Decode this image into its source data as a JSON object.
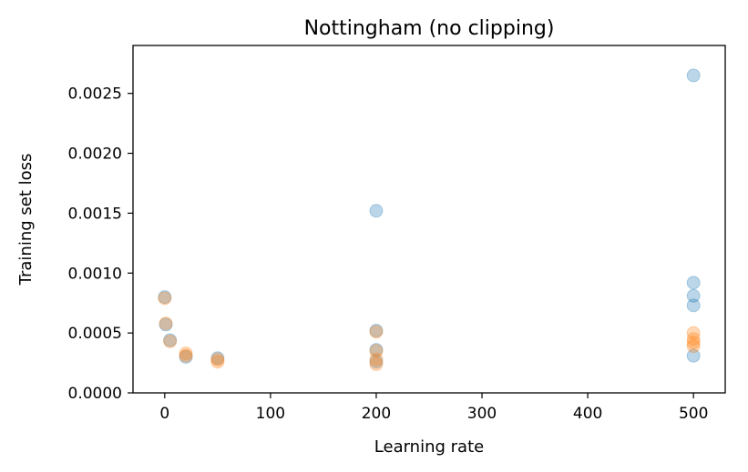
{
  "chart_data": {
    "type": "scatter",
    "title": "Nottingham (no clipping)",
    "xlabel": "Learning rate",
    "ylabel": "Training set loss",
    "xlim": [
      -30,
      530
    ],
    "ylim": [
      0.0,
      0.0029
    ],
    "xticks": [
      0,
      100,
      200,
      300,
      400,
      500
    ],
    "yticks": [
      0.0,
      0.0005,
      0.001,
      0.0015,
      0.002,
      0.0025
    ],
    "xtick_labels": [
      "0",
      "100",
      "200",
      "300",
      "400",
      "500"
    ],
    "ytick_labels": [
      "0.0000",
      "0.0005",
      "0.0010",
      "0.0015",
      "0.0020",
      "0.0025"
    ],
    "grid": false,
    "legend": "none",
    "series": [
      {
        "color": "#1f77b4",
        "points": [
          {
            "x": 0,
            "y": 0.0008
          },
          {
            "x": 1,
            "y": 0.00057
          },
          {
            "x": 5,
            "y": 0.00044
          },
          {
            "x": 20,
            "y": 0.0003
          },
          {
            "x": 50,
            "y": 0.00029
          },
          {
            "x": 200,
            "y": 0.00152
          },
          {
            "x": 200,
            "y": 0.00052
          },
          {
            "x": 200,
            "y": 0.00036
          },
          {
            "x": 200,
            "y": 0.00026
          },
          {
            "x": 500,
            "y": 0.00265
          },
          {
            "x": 500,
            "y": 0.00092
          },
          {
            "x": 500,
            "y": 0.00081
          },
          {
            "x": 500,
            "y": 0.00073
          },
          {
            "x": 500,
            "y": 0.00031
          }
        ]
      },
      {
        "color": "#ff7f0e",
        "points": [
          {
            "x": 0,
            "y": 0.00079
          },
          {
            "x": 1,
            "y": 0.00058
          },
          {
            "x": 5,
            "y": 0.00043
          },
          {
            "x": 20,
            "y": 0.00033
          },
          {
            "x": 20,
            "y": 0.00031
          },
          {
            "x": 50,
            "y": 0.00028
          },
          {
            "x": 50,
            "y": 0.00026
          },
          {
            "x": 200,
            "y": 0.00051
          },
          {
            "x": 200,
            "y": 0.00035
          },
          {
            "x": 200,
            "y": 0.00028
          },
          {
            "x": 200,
            "y": 0.00024
          },
          {
            "x": 500,
            "y": 0.0005
          },
          {
            "x": 500,
            "y": 0.00045
          },
          {
            "x": 500,
            "y": 0.00042
          },
          {
            "x": 500,
            "y": 0.00039
          }
        ]
      }
    ]
  }
}
